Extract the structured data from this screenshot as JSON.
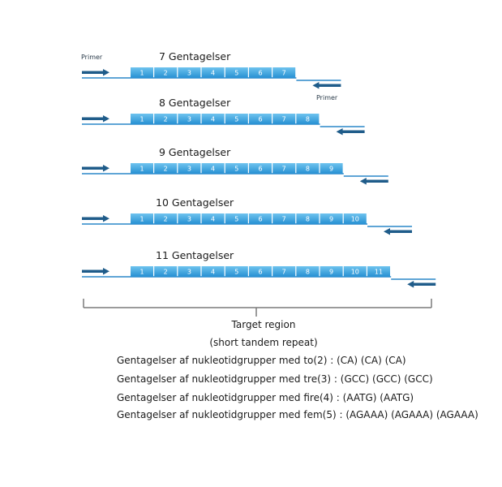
{
  "primer_label": "Primer",
  "rows": [
    {
      "title": "7 Gentagelser",
      "repeats": [
        "1",
        "2",
        "3",
        "4",
        "5",
        "6",
        "7"
      ]
    },
    {
      "title": "8 Gentagelser",
      "repeats": [
        "1",
        "2",
        "3",
        "4",
        "5",
        "6",
        "7",
        "8"
      ]
    },
    {
      "title": "9 Gentagelser",
      "repeats": [
        "1",
        "2",
        "3",
        "4",
        "5",
        "6",
        "7",
        "8",
        "9"
      ]
    },
    {
      "title": "10 Gentagelser",
      "repeats": [
        "1",
        "2",
        "3",
        "4",
        "5",
        "6",
        "7",
        "8",
        "9",
        "10"
      ]
    },
    {
      "title": "11 Gentagelser",
      "repeats": [
        "1",
        "2",
        "3",
        "4",
        "5",
        "6",
        "7",
        "8",
        "9",
        "10",
        "11"
      ]
    }
  ],
  "target_region": {
    "label": "Target region",
    "sublabel": "(short tandem repeat)"
  },
  "notes": [
    "Gentagelser af nukleotidgrupper med to(2) : (CA) (CA) (CA)",
    "Gentagelser af nukleotidgrupper med tre(3) : (GCC) (GCC) (GCC)",
    "Gentagelser af nukleotidgrupper med fire(4) : (AATG) (AATG)",
    "Gentagelser af nukleotidgrupper med fem(5) : (AGAAA) (AGAAA) (AGAAA)"
  ],
  "colors": {
    "segment_top": "#6ec3ee",
    "segment_bottom": "#2790d3",
    "line": "#2a87c9",
    "arrow": "#1f5c8a",
    "bracket": "#7a7a7a"
  }
}
